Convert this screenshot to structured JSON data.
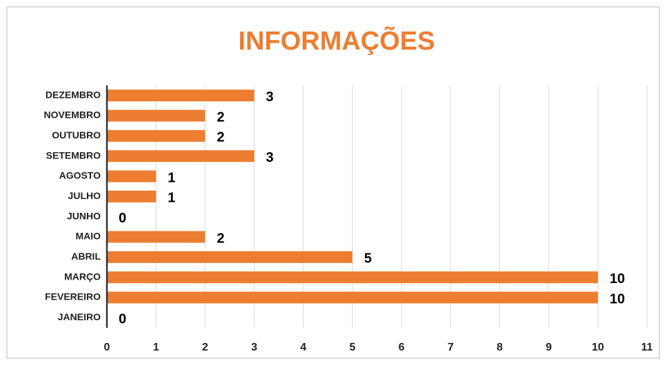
{
  "chart_data": {
    "type": "barh",
    "title": "INFORMAÇÕES",
    "categories": [
      "JANEIRO",
      "FEVEREIRO",
      "MARÇO",
      "ABRIL",
      "MAIO",
      "JUNHO",
      "JULHO",
      "AGOSTO",
      "SETEMBRO",
      "OUTUBRO",
      "NOVEMBRO",
      "DEZEMBRO"
    ],
    "values": [
      0,
      10,
      10,
      5,
      2,
      0,
      1,
      1,
      3,
      2,
      2,
      3
    ],
    "color": "#ed7d31",
    "xlim": [
      0,
      11
    ],
    "xticks": [
      0,
      1,
      2,
      3,
      4,
      5,
      6,
      7,
      8,
      9,
      10,
      11
    ],
    "grid": true
  }
}
